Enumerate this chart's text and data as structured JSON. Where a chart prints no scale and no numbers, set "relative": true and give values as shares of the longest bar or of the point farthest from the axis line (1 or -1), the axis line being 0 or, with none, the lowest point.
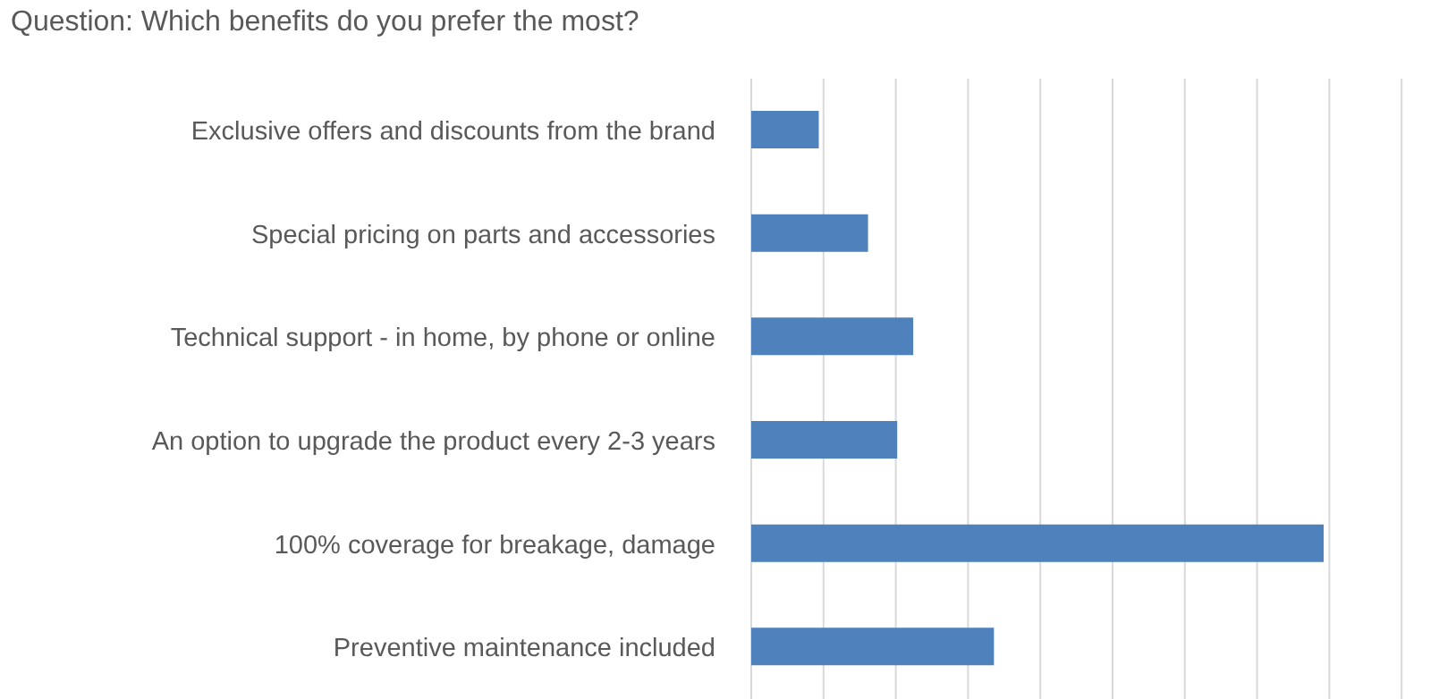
{
  "chart_data": {
    "type": "bar",
    "orientation": "horizontal",
    "relative": true,
    "title": "Question: Which benefits do you prefer the most?",
    "categories": [
      "Exclusive offers and discounts from the brand",
      "Special pricing on parts and accessories",
      "Technical support - in home, by phone or online",
      "An option to upgrade the product every 2-3 years",
      "100% coverage for breakage, damage",
      "Preventive maintenance included"
    ],
    "values": [
      0.118,
      0.204,
      0.283,
      0.255,
      1,
      0.424
    ],
    "color": "#4f81bd",
    "grid": "x"
  }
}
